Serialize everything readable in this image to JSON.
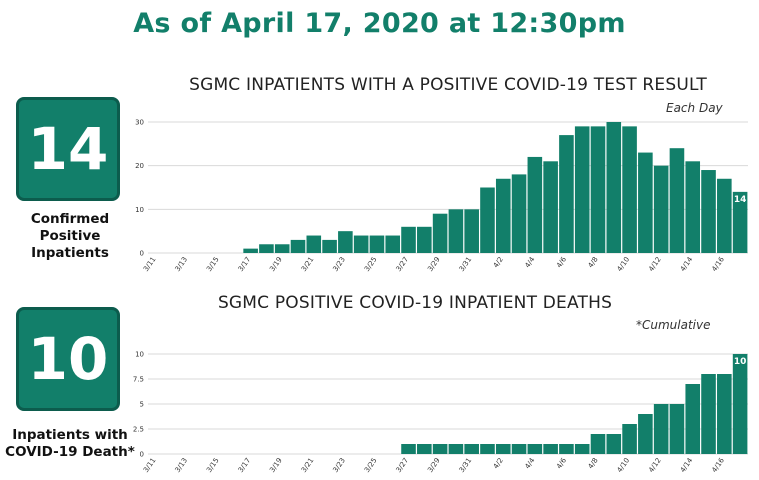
{
  "headline": "As of April 17, 2020 at 12:30pm",
  "colors": {
    "accent": "#127f6a",
    "accent_dark": "#0c5c4d",
    "bar": "#127f6a"
  },
  "stats": [
    {
      "value": "14",
      "label": "Confirmed Positive Inpatients"
    },
    {
      "value": "10",
      "label": "Inpatients with COVID-19 Death*"
    }
  ],
  "chart_data": [
    {
      "type": "bar",
      "title": "SGMC INPATIENTS WITH A POSITIVE COVID-19 TEST RESULT",
      "note": "Each Day",
      "categories": [
        "3/11",
        "3/12",
        "3/13",
        "3/14",
        "3/15",
        "3/16",
        "3/17",
        "3/18",
        "3/19",
        "3/20",
        "3/21",
        "3/22",
        "3/23",
        "3/24",
        "3/25",
        "3/26",
        "3/27",
        "3/28",
        "3/29",
        "3/30",
        "3/31",
        "4/1",
        "4/2",
        "4/3",
        "4/4",
        "4/5",
        "4/6",
        "4/7",
        "4/8",
        "4/9",
        "4/10",
        "4/11",
        "4/12",
        "4/13",
        "4/14",
        "4/15",
        "4/16",
        "4/17"
      ],
      "tick_labels": [
        "3/11",
        "3/13",
        "3/15",
        "3/17",
        "3/19",
        "3/21",
        "3/23",
        "3/25",
        "3/27",
        "3/29",
        "3/31",
        "4/2",
        "4/4",
        "4/6",
        "4/8",
        "4/10",
        "4/12",
        "4/14",
        "4/16"
      ],
      "values": [
        0,
        0,
        0,
        0,
        0,
        0,
        1,
        2,
        2,
        3,
        4,
        3,
        5,
        4,
        4,
        4,
        6,
        6,
        9,
        10,
        10,
        15,
        17,
        18,
        22,
        21,
        27,
        29,
        29,
        30,
        29,
        23,
        20,
        24,
        21,
        19,
        17,
        14
      ],
      "yticks": [
        "0",
        "10",
        "20",
        "30"
      ],
      "ylim": [
        0,
        30
      ],
      "last_label": "14",
      "grid": true
    },
    {
      "type": "bar",
      "title": "SGMC POSITIVE COVID-19 INPATIENT DEATHS",
      "note": "*Cumulative",
      "categories": [
        "3/11",
        "3/12",
        "3/13",
        "3/14",
        "3/15",
        "3/16",
        "3/17",
        "3/18",
        "3/19",
        "3/20",
        "3/21",
        "3/22",
        "3/23",
        "3/24",
        "3/25",
        "3/26",
        "3/27",
        "3/28",
        "3/29",
        "3/30",
        "3/31",
        "4/1",
        "4/2",
        "4/3",
        "4/4",
        "4/5",
        "4/6",
        "4/7",
        "4/8",
        "4/9",
        "4/10",
        "4/11",
        "4/12",
        "4/13",
        "4/14",
        "4/15",
        "4/16",
        "4/17"
      ],
      "tick_labels": [
        "3/11",
        "3/13",
        "3/15",
        "3/17",
        "3/19",
        "3/21",
        "3/23",
        "3/25",
        "3/27",
        "3/29",
        "3/31",
        "4/2",
        "4/4",
        "4/6",
        "4/8",
        "4/10",
        "4/12",
        "4/14",
        "4/16"
      ],
      "values": [
        0,
        0,
        0,
        0,
        0,
        0,
        0,
        0,
        0,
        0,
        0,
        0,
        0,
        0,
        0,
        0,
        1,
        1,
        1,
        1,
        1,
        1,
        1,
        1,
        1,
        1,
        1,
        1,
        2,
        2,
        3,
        4,
        5,
        5,
        7,
        8,
        8,
        10
      ],
      "yticks": [
        "0",
        "2.5",
        "5",
        "7.5",
        "10"
      ],
      "ylim": [
        0,
        10
      ],
      "last_label": "10",
      "grid": true
    }
  ]
}
